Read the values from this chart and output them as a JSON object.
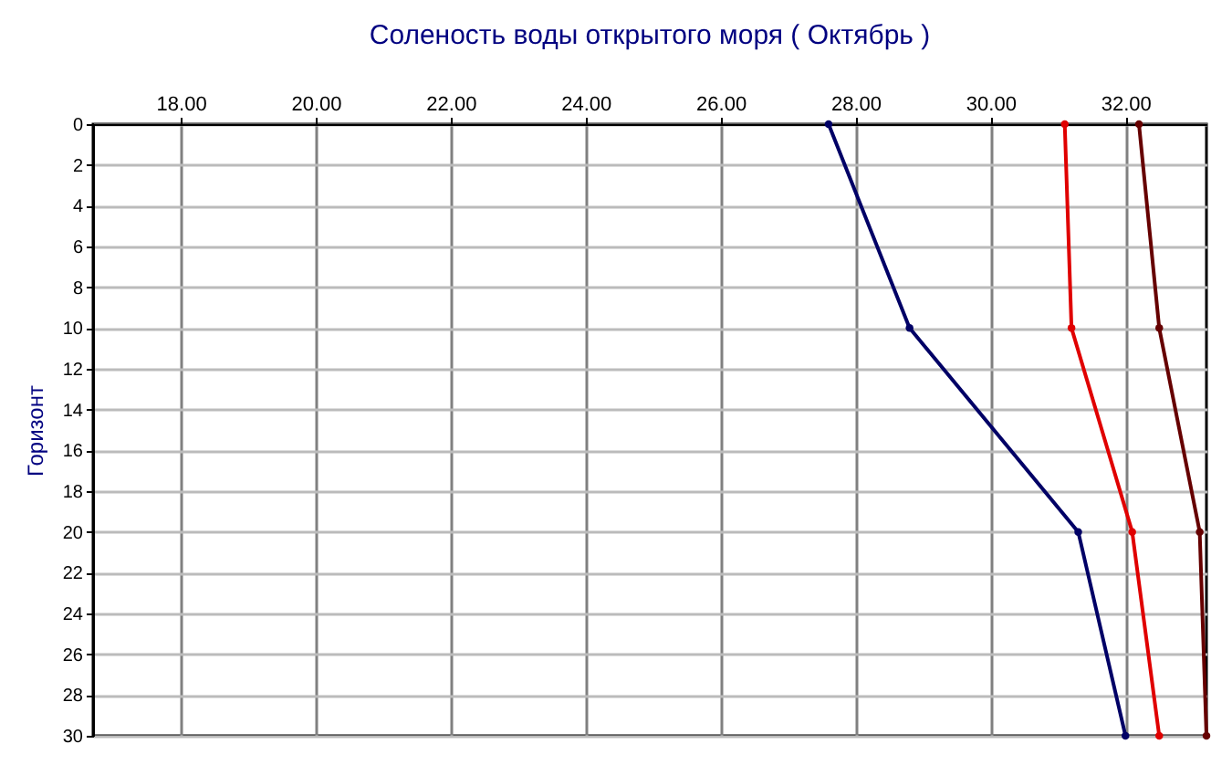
{
  "chart_data": {
    "type": "line",
    "title": "Соленость воды открытого моря    ( Октябрь )",
    "ylabel": "Горизонт",
    "xlim": [
      16.7,
      33.2
    ],
    "xticks": [
      {
        "value": 18,
        "label": "18.00"
      },
      {
        "value": 20,
        "label": "20.00"
      },
      {
        "value": 22,
        "label": "22.00"
      },
      {
        "value": 24,
        "label": "24.00"
      },
      {
        "value": 26,
        "label": "26.00"
      },
      {
        "value": 28,
        "label": "28.00"
      },
      {
        "value": 30,
        "label": "30.00"
      },
      {
        "value": 32,
        "label": "32.00"
      }
    ],
    "ylim": [
      30,
      0
    ],
    "yticks": [
      0,
      2,
      4,
      6,
      8,
      10,
      12,
      14,
      16,
      18,
      20,
      22,
      24,
      26,
      28,
      30
    ],
    "grid": true,
    "marker": "circle",
    "line_style": "solid",
    "series": [
      {
        "color": "#000066",
        "x": [
          27.6,
          28.8,
          31.3,
          32.0
        ],
        "values": [
          0,
          10,
          20,
          30
        ]
      },
      {
        "color": "#e00000",
        "x": [
          31.1,
          31.2,
          32.1,
          32.5
        ],
        "values": [
          0,
          10,
          20,
          30
        ]
      },
      {
        "color": "#660000",
        "x": [
          32.2,
          32.5,
          33.1,
          33.2
        ],
        "values": [
          0,
          10,
          20,
          30
        ]
      }
    ]
  }
}
